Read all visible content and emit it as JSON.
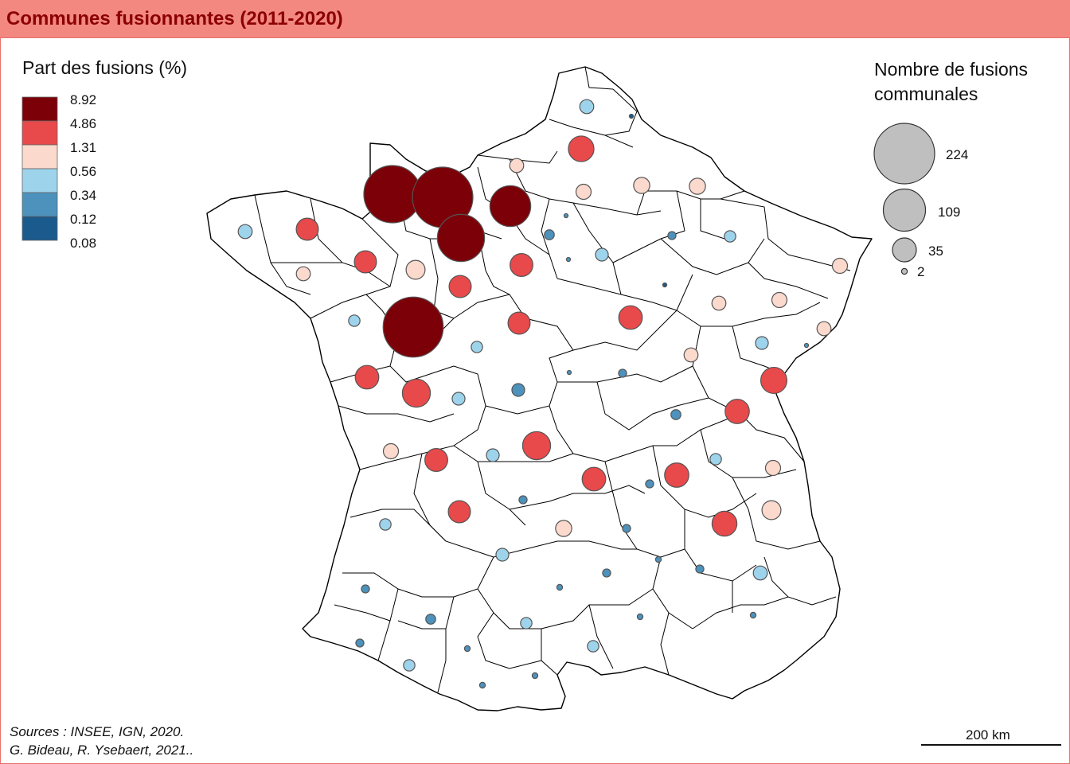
{
  "title": "Communes fusionnantes (2011-2020)",
  "legend_choropleth": {
    "title": "Part des fusions (%)",
    "breaks": [
      "8.92",
      "4.86",
      "1.31",
      "0.56",
      "0.34",
      "0.12",
      "0.08"
    ],
    "colors": [
      "#7b0008",
      "#e8494b",
      "#fbd9cc",
      "#9ed3ec",
      "#4c92bd",
      "#1b5a8c"
    ]
  },
  "legend_symbols": {
    "title_line1": "Nombre de fusions",
    "title_line2": "communales",
    "values": [
      "224",
      "109",
      "35",
      "2"
    ]
  },
  "source_line1": "Sources : INSEE, IGN, 2020.",
  "source_line2": "G. Bideau, R. Ysebaert, 2021..",
  "scale_label": "200 km",
  "map_data": {
    "stroke_color": "#555555",
    "departement_count": 96,
    "symbols": [
      {
        "cat": 3,
        "n": 12
      },
      {
        "cat": 5,
        "n": 1
      },
      {
        "cat": 2,
        "n": 12
      },
      {
        "cat": 1,
        "n": 40
      },
      {
        "cat": 0,
        "n": 201
      },
      {
        "cat": 0,
        "n": 224
      },
      {
        "cat": 0,
        "n": 102
      },
      {
        "cat": 2,
        "n": 14
      },
      {
        "cat": 2,
        "n": 16
      },
      {
        "cat": 4,
        "n": 1
      },
      {
        "cat": 1,
        "n": 30
      },
      {
        "cat": 0,
        "n": 136
      },
      {
        "cat": 2,
        "n": 16
      },
      {
        "cat": 4,
        "n": 6
      },
      {
        "cat": 4,
        "n": 1
      },
      {
        "cat": 4,
        "n": 4
      },
      {
        "cat": 3,
        "n": 12
      },
      {
        "cat": 3,
        "n": 10
      },
      {
        "cat": 1,
        "n": 30
      },
      {
        "cat": 2,
        "n": 22
      },
      {
        "cat": 1,
        "n": 32
      },
      {
        "cat": 1,
        "n": 30
      },
      {
        "cat": 2,
        "n": 12
      },
      {
        "cat": 3,
        "n": 8
      },
      {
        "cat": 5,
        "n": 1
      },
      {
        "cat": 2,
        "n": 12
      },
      {
        "cat": 2,
        "n": 14
      },
      {
        "cat": 0,
        "n": 221
      },
      {
        "cat": 1,
        "n": 30
      },
      {
        "cat": 3,
        "n": 8
      },
      {
        "cat": 1,
        "n": 34
      },
      {
        "cat": 2,
        "n": 14
      },
      {
        "cat": 2,
        "n": 12
      },
      {
        "cat": 4,
        "n": 1
      },
      {
        "cat": 3,
        "n": 10
      },
      {
        "cat": 1,
        "n": 34
      },
      {
        "cat": 1,
        "n": 48
      },
      {
        "cat": 3,
        "n": 8
      },
      {
        "cat": 2,
        "n": 12
      },
      {
        "cat": 4,
        "n": 1
      },
      {
        "cat": 1,
        "n": 42
      },
      {
        "cat": 4,
        "n": 10
      },
      {
        "cat": 4,
        "n": 4
      },
      {
        "cat": 3,
        "n": 10
      },
      {
        "cat": 4,
        "n": 6
      },
      {
        "cat": 1,
        "n": 36
      },
      {
        "cat": 1,
        "n": 32
      },
      {
        "cat": 2,
        "n": 14
      },
      {
        "cat": 3,
        "n": 10
      },
      {
        "cat": 1,
        "n": 48
      },
      {
        "cat": 3,
        "n": 8
      },
      {
        "cat": 1,
        "n": 34
      },
      {
        "cat": 1,
        "n": 36
      },
      {
        "cat": 2,
        "n": 14
      },
      {
        "cat": 4,
        "n": 4
      },
      {
        "cat": 1,
        "n": 30
      },
      {
        "cat": 2,
        "n": 22
      },
      {
        "cat": 1,
        "n": 38
      },
      {
        "cat": 4,
        "n": 4
      },
      {
        "cat": 3,
        "n": 8
      },
      {
        "cat": 2,
        "n": 16
      },
      {
        "cat": 4,
        "n": 4
      },
      {
        "cat": 3,
        "n": 10
      },
      {
        "cat": 4,
        "n": 4
      },
      {
        "cat": 4,
        "n": 2
      },
      {
        "cat": 4,
        "n": 4
      },
      {
        "cat": 3,
        "n": 12
      },
      {
        "cat": 4,
        "n": 2
      },
      {
        "cat": 4,
        "n": 4
      },
      {
        "cat": 3,
        "n": 8
      },
      {
        "cat": 4,
        "n": 6
      },
      {
        "cat": 4,
        "n": 2
      },
      {
        "cat": 4,
        "n": 2
      },
      {
        "cat": 3,
        "n": 8
      },
      {
        "cat": 4,
        "n": 4
      },
      {
        "cat": 4,
        "n": 2
      },
      {
        "cat": 3,
        "n": 8
      },
      {
        "cat": 4,
        "n": 2
      },
      {
        "cat": 4,
        "n": 2
      }
    ]
  }
}
